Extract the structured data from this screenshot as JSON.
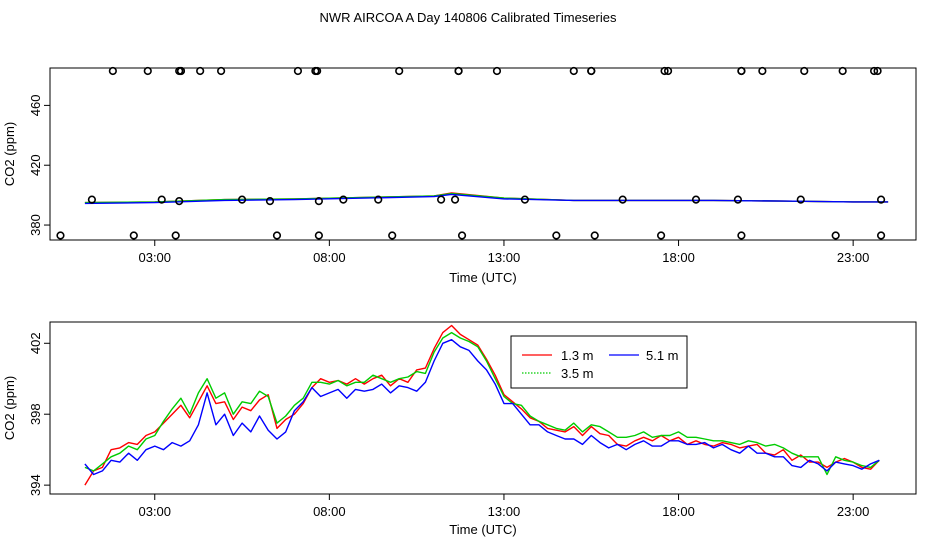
{
  "figure_title": "NWR AIRCOA A  Day 140806  Calibrated Timeseries",
  "chart_data": [
    {
      "type": "scatter+line",
      "title": "",
      "xlabel": "Time (UTC)",
      "ylabel": "CO2 (ppm)",
      "xlim": [
        0.0,
        24.8
      ],
      "ylim": [
        370,
        485
      ],
      "xticks": [
        3,
        8,
        13,
        18,
        23
      ],
      "xtick_labels": [
        "03:00",
        "08:00",
        "13:00",
        "18:00",
        "23:00"
      ],
      "yticks": [
        380,
        420,
        460
      ],
      "ytick_labels": [
        "380",
        "420",
        "460"
      ],
      "calibration_points": {
        "name": "calibration standards",
        "x": [
          1.8,
          2.8,
          3.7,
          3.75,
          3.75,
          4.3,
          4.9,
          7.1,
          7.6,
          7.65,
          10.0,
          11.7,
          11.7,
          12.8,
          15.0,
          15.5,
          15.5,
          17.6,
          17.7,
          19.8,
          19.8,
          20.4,
          21.6,
          22.7,
          23.6,
          23.7,
          1.2,
          3.2,
          3.7,
          5.5,
          6.3,
          7.7,
          8.4,
          9.4,
          11.2,
          11.6,
          13.6,
          16.4,
          18.5,
          19.7,
          21.5,
          23.8,
          0.3,
          2.4,
          3.6,
          6.5,
          7.7,
          9.8,
          11.8,
          14.5,
          15.6,
          17.5,
          19.8,
          22.5,
          23.8
        ],
        "y": [
          483,
          483,
          483,
          483,
          483,
          483,
          483,
          483,
          483,
          483,
          483,
          483,
          483,
          483,
          483,
          483,
          483,
          483,
          483,
          483,
          483,
          483,
          483,
          483,
          483,
          483,
          397,
          397,
          396,
          397,
          396,
          396,
          397,
          397,
          397,
          397,
          397,
          397,
          397,
          397,
          397,
          397,
          373,
          373,
          373,
          373,
          373,
          373,
          373,
          373,
          373,
          373,
          373,
          373,
          373
        ]
      },
      "series": [
        {
          "name": "1.3 m",
          "color": "#ff0000",
          "x": [
            1.0,
            3.0,
            5.0,
            7.0,
            9.0,
            11.0,
            11.5,
            13.0,
            15.0,
            17.0,
            19.0,
            21.0,
            23.0,
            24.0
          ],
          "values": [
            395,
            395.5,
            397,
            397.5,
            398.5,
            399.5,
            401.5,
            398,
            396.5,
            396.5,
            396.5,
            396,
            395.5,
            395.5
          ]
        },
        {
          "name": "3.5 m",
          "color": "#00cc00",
          "x": [
            1.0,
            3.0,
            5.0,
            7.0,
            9.0,
            11.0,
            11.5,
            13.0,
            15.0,
            17.0,
            19.0,
            21.0,
            23.0,
            24.0
          ],
          "values": [
            395,
            395.5,
            397,
            397.5,
            398.5,
            399.5,
            401,
            398,
            396.5,
            396.5,
            396.5,
            396,
            395.5,
            395.5
          ]
        },
        {
          "name": "5.1 m",
          "color": "#0000ff",
          "x": [
            1.0,
            3.0,
            5.0,
            7.0,
            9.0,
            11.0,
            11.5,
            13.0,
            15.0,
            17.0,
            19.0,
            21.0,
            23.0,
            24.0
          ],
          "values": [
            394.5,
            395,
            396.5,
            397,
            398,
            399,
            400.5,
            397.5,
            396.5,
            396.5,
            396.5,
            396,
            395.5,
            395.5
          ]
        }
      ]
    },
    {
      "type": "line",
      "title": "",
      "xlabel": "Time (UTC)",
      "ylabel": "CO2 (ppm)",
      "xlim": [
        0.0,
        24.8
      ],
      "ylim": [
        393.5,
        403.2
      ],
      "xticks": [
        3,
        8,
        13,
        18,
        23
      ],
      "xtick_labels": [
        "03:00",
        "08:00",
        "13:00",
        "18:00",
        "23:00"
      ],
      "yticks": [
        394,
        398,
        402
      ],
      "ytick_labels": [
        "394",
        "398",
        "402"
      ],
      "legend_position": "top-center",
      "series": [
        {
          "name": "1.3 m",
          "color": "#ff0000",
          "x": [
            1.0,
            1.25,
            1.5,
            1.75,
            2.0,
            2.25,
            2.5,
            2.75,
            3.0,
            3.25,
            3.5,
            3.75,
            4.0,
            4.25,
            4.5,
            4.75,
            5.0,
            5.25,
            5.5,
            5.75,
            6.0,
            6.25,
            6.5,
            6.75,
            7.0,
            7.25,
            7.5,
            7.75,
            8.0,
            8.25,
            8.5,
            8.75,
            9.0,
            9.25,
            9.5,
            9.75,
            10.0,
            10.25,
            10.5,
            10.75,
            11.0,
            11.25,
            11.5,
            11.75,
            12.0,
            12.25,
            12.5,
            12.75,
            13.0,
            13.25,
            13.5,
            13.75,
            14.0,
            14.25,
            14.5,
            14.75,
            15.0,
            15.25,
            15.5,
            15.75,
            16.0,
            16.25,
            16.5,
            16.75,
            17.0,
            17.25,
            17.5,
            17.75,
            18.0,
            18.25,
            18.5,
            18.75,
            19.0,
            19.25,
            19.5,
            19.75,
            20.0,
            20.25,
            20.5,
            20.75,
            21.0,
            21.25,
            21.5,
            21.75,
            22.0,
            22.25,
            22.5,
            22.75,
            23.0,
            23.25,
            23.5,
            23.75
          ],
          "values": [
            394.0,
            394.8,
            395.0,
            396.0,
            396.1,
            396.4,
            396.3,
            396.8,
            397.0,
            397.5,
            398.0,
            398.5,
            397.8,
            398.7,
            399.6,
            398.6,
            398.7,
            397.7,
            398.4,
            398.2,
            398.8,
            399.1,
            397.2,
            397.7,
            398.0,
            398.6,
            399.5,
            400.0,
            399.8,
            399.9,
            399.7,
            400.0,
            399.7,
            400.0,
            400.2,
            399.6,
            400.0,
            399.8,
            400.5,
            400.6,
            401.7,
            402.6,
            403.0,
            402.5,
            402.2,
            401.9,
            401.1,
            400.2,
            399.1,
            398.7,
            398.3,
            397.8,
            397.6,
            397.2,
            397.1,
            397.0,
            397.3,
            396.8,
            397.3,
            396.9,
            396.8,
            396.3,
            396.2,
            396.5,
            396.7,
            396.5,
            396.8,
            396.5,
            396.7,
            396.3,
            396.5,
            396.3,
            396.2,
            396.4,
            396.3,
            396.1,
            396.2,
            396.3,
            395.8,
            395.7,
            396.0,
            395.4,
            395.7,
            395.3,
            395.3,
            395.0,
            395.3,
            395.5,
            395.3,
            395.0,
            394.9,
            395.4
          ]
        },
        {
          "name": "3.5 m",
          "color": "#00cc00",
          "x": [
            1.0,
            1.25,
            1.5,
            1.75,
            2.0,
            2.25,
            2.5,
            2.75,
            3.0,
            3.25,
            3.5,
            3.75,
            4.0,
            4.25,
            4.5,
            4.75,
            5.0,
            5.25,
            5.5,
            5.75,
            6.0,
            6.25,
            6.5,
            6.75,
            7.0,
            7.25,
            7.5,
            7.75,
            8.0,
            8.25,
            8.5,
            8.75,
            9.0,
            9.25,
            9.5,
            9.75,
            10.0,
            10.25,
            10.5,
            10.75,
            11.0,
            11.25,
            11.5,
            11.75,
            12.0,
            12.25,
            12.5,
            12.75,
            13.0,
            13.25,
            13.5,
            13.75,
            14.0,
            14.25,
            14.5,
            14.75,
            15.0,
            15.25,
            15.5,
            15.75,
            16.0,
            16.25,
            16.5,
            16.75,
            17.0,
            17.25,
            17.5,
            17.75,
            18.0,
            18.25,
            18.5,
            18.75,
            19.0,
            19.25,
            19.5,
            19.75,
            20.0,
            20.25,
            20.5,
            20.75,
            21.0,
            21.25,
            21.5,
            21.75,
            22.0,
            22.25,
            22.5,
            22.75,
            23.0,
            23.25,
            23.5,
            23.75
          ],
          "values": [
            395.0,
            394.8,
            395.2,
            395.6,
            395.8,
            396.2,
            396.0,
            396.6,
            396.8,
            397.6,
            398.3,
            398.9,
            398.0,
            399.2,
            400.0,
            398.9,
            399.2,
            398.0,
            398.7,
            398.6,
            399.3,
            399.0,
            397.5,
            397.9,
            398.5,
            398.9,
            399.8,
            399.8,
            399.7,
            399.9,
            399.6,
            399.8,
            399.8,
            400.2,
            400.0,
            399.8,
            400.0,
            400.1,
            400.4,
            400.3,
            401.5,
            402.3,
            402.6,
            402.3,
            402.1,
            401.8,
            401.0,
            400.0,
            399.0,
            398.6,
            398.5,
            397.9,
            397.6,
            397.4,
            397.2,
            397.1,
            397.5,
            397.0,
            397.4,
            397.3,
            397.0,
            396.7,
            396.7,
            396.8,
            397.0,
            396.7,
            396.8,
            396.8,
            397.0,
            396.7,
            396.7,
            396.6,
            396.5,
            396.5,
            396.4,
            396.3,
            396.5,
            396.4,
            396.2,
            396.3,
            396.1,
            395.8,
            395.6,
            395.6,
            395.6,
            394.6,
            395.6,
            395.4,
            395.3,
            395.1,
            395.0,
            395.4
          ]
        },
        {
          "name": "5.1 m",
          "color": "#0000ff",
          "x": [
            1.0,
            1.25,
            1.5,
            1.75,
            2.0,
            2.25,
            2.5,
            2.75,
            3.0,
            3.25,
            3.5,
            3.75,
            4.0,
            4.25,
            4.5,
            4.75,
            5.0,
            5.25,
            5.5,
            5.75,
            6.0,
            6.25,
            6.5,
            6.75,
            7.0,
            7.25,
            7.5,
            7.75,
            8.0,
            8.25,
            8.5,
            8.75,
            9.0,
            9.25,
            9.5,
            9.75,
            10.0,
            10.25,
            10.5,
            10.75,
            11.0,
            11.25,
            11.5,
            11.75,
            12.0,
            12.25,
            12.5,
            12.75,
            13.0,
            13.25,
            13.5,
            13.75,
            14.0,
            14.25,
            14.5,
            14.75,
            15.0,
            15.25,
            15.5,
            15.75,
            16.0,
            16.25,
            16.5,
            16.75,
            17.0,
            17.25,
            17.5,
            17.75,
            18.0,
            18.25,
            18.5,
            18.75,
            19.0,
            19.25,
            19.5,
            19.75,
            20.0,
            20.25,
            20.5,
            20.75,
            21.0,
            21.25,
            21.5,
            21.75,
            22.0,
            22.25,
            22.5,
            22.75,
            23.0,
            23.25,
            23.5,
            23.75
          ],
          "values": [
            395.2,
            394.6,
            394.8,
            395.4,
            395.3,
            395.8,
            395.4,
            396.0,
            396.2,
            396.0,
            396.4,
            396.2,
            396.5,
            397.4,
            399.2,
            397.4,
            398.0,
            396.8,
            397.5,
            397.0,
            397.9,
            397.1,
            396.6,
            397.0,
            398.2,
            398.7,
            399.5,
            399.0,
            399.2,
            399.4,
            398.9,
            399.4,
            399.3,
            399.4,
            399.7,
            399.2,
            399.6,
            399.5,
            399.3,
            399.8,
            401.0,
            402.0,
            402.2,
            401.8,
            401.6,
            401.0,
            400.5,
            399.7,
            398.6,
            398.6,
            398.0,
            397.4,
            397.4,
            397.0,
            396.8,
            396.6,
            396.6,
            396.3,
            396.8,
            396.4,
            396.1,
            396.3,
            396.0,
            396.3,
            396.5,
            396.2,
            396.2,
            396.5,
            396.5,
            396.3,
            396.3,
            396.4,
            396.1,
            396.3,
            396.0,
            395.8,
            396.2,
            395.8,
            395.8,
            395.6,
            395.6,
            395.1,
            395.0,
            395.4,
            395.2,
            394.8,
            395.3,
            395.2,
            395.1,
            394.9,
            395.2,
            395.4
          ]
        }
      ]
    }
  ]
}
